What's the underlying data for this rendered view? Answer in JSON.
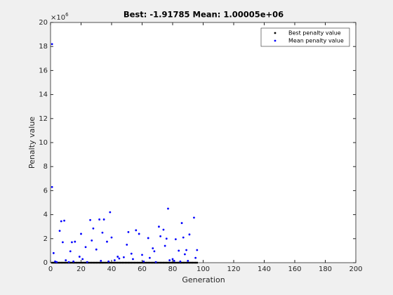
{
  "chart_data": {
    "type": "scatter",
    "title": "Best: -1.91785 Mean: 1.00005e+06",
    "x_label": "Generation",
    "y_label": "Penalty value",
    "y_multiplier": "×10",
    "y_multiplier_exponent": "6",
    "xlim": [
      0,
      200
    ],
    "xticks": [
      0,
      20,
      40,
      60,
      80,
      100,
      120,
      140,
      160,
      180,
      200
    ],
    "ylim": [
      0,
      20
    ],
    "yticks": [
      0,
      2,
      4,
      6,
      8,
      10,
      12,
      14,
      16,
      18,
      20
    ],
    "legend_position": "top-right",
    "series": [
      {
        "name": "Best penalty value",
        "color": "#000000",
        "x": [
          1,
          2,
          3,
          4,
          5,
          6,
          7,
          8,
          9,
          10,
          11,
          12,
          13,
          14,
          15,
          16,
          17,
          18,
          19,
          20,
          21,
          22,
          23,
          24,
          25,
          26,
          27,
          28,
          29,
          30,
          31,
          32,
          33,
          34,
          35,
          36,
          37,
          38,
          39,
          40,
          41,
          42,
          43,
          44,
          45,
          46,
          47,
          48,
          49,
          50,
          51,
          52,
          53,
          54,
          55,
          56,
          57,
          58,
          59,
          60,
          61,
          62,
          63,
          64,
          65,
          66,
          67,
          68,
          69,
          70,
          71,
          72,
          73,
          74,
          75,
          76,
          77,
          78,
          79,
          80,
          81,
          82,
          83,
          84,
          85,
          86,
          87,
          88,
          89,
          90,
          91,
          92,
          93,
          94,
          95,
          96
        ],
        "values": [
          0,
          0,
          0,
          0,
          0,
          0,
          0,
          0,
          0,
          0,
          0,
          0,
          0,
          0,
          0,
          0,
          0,
          0,
          0,
          0,
          0,
          0,
          0,
          0,
          0,
          0,
          0,
          0,
          0,
          0,
          0,
          0,
          0,
          0,
          0,
          0,
          0,
          0,
          0,
          0,
          0,
          0,
          0,
          0,
          0,
          0,
          0,
          0,
          0,
          0,
          0,
          0,
          0,
          0,
          0,
          0,
          0,
          0,
          0,
          0,
          0,
          0,
          0,
          0,
          0,
          0,
          0,
          0,
          0,
          0,
          0,
          0,
          0,
          0,
          0,
          0,
          0,
          0,
          0,
          0,
          0,
          0,
          0,
          0,
          0,
          0,
          0,
          0,
          0,
          0,
          0,
          0,
          0,
          0,
          0,
          0
        ]
      },
      {
        "name": "Mean penalty value",
        "color": "#0000ff",
        "x": [
          1,
          1,
          2,
          3,
          4,
          6,
          7,
          8,
          9,
          10,
          12,
          13,
          14,
          15,
          16,
          19,
          20,
          21,
          23,
          24,
          26,
          27,
          28,
          30,
          32,
          33,
          34,
          35,
          37,
          38,
          39,
          40,
          42,
          44,
          45,
          48,
          50,
          51,
          53,
          54,
          56,
          58,
          60,
          61,
          64,
          65,
          67,
          68,
          69,
          71,
          72,
          74,
          75,
          76,
          77,
          78,
          80,
          81,
          82,
          84,
          85,
          86,
          87,
          88,
          89,
          90,
          91,
          94,
          95,
          96
        ],
        "values": [
          18.2,
          6.3,
          0.8,
          0.1,
          0.05,
          2.65,
          3.45,
          1.7,
          3.5,
          0.2,
          0.05,
          0.95,
          1.7,
          0.1,
          1.75,
          0.5,
          2.4,
          0.3,
          1.3,
          0.05,
          3.55,
          1.85,
          2.85,
          1.1,
          3.6,
          0.15,
          2.5,
          3.6,
          1.75,
          0.1,
          4.2,
          2.1,
          0.2,
          0.5,
          0.35,
          0.45,
          1.5,
          2.55,
          0.75,
          0.3,
          2.7,
          2.4,
          0.65,
          0.1,
          2.05,
          0.4,
          1.2,
          0.95,
          0.05,
          3.0,
          2.2,
          2.75,
          1.4,
          2.0,
          4.5,
          0.2,
          0.3,
          0.15,
          1.95,
          1.0,
          0.1,
          3.3,
          2.1,
          0.7,
          1.05,
          0.15,
          2.35,
          3.75,
          0.4,
          1.05
        ]
      }
    ]
  }
}
